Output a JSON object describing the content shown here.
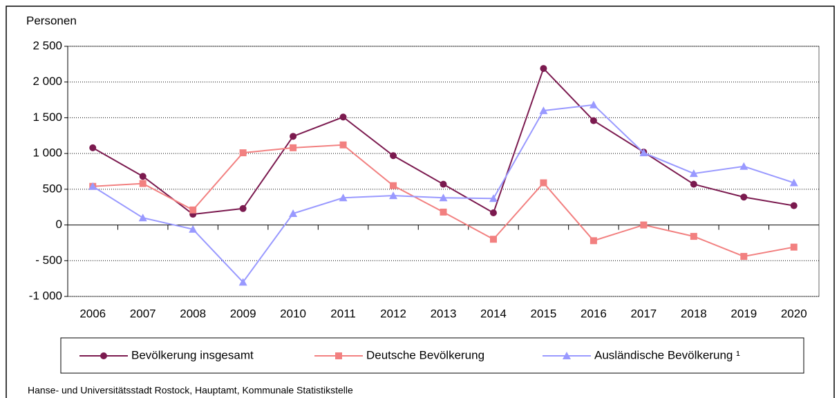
{
  "chart_data": {
    "type": "line",
    "y_label": "Personen",
    "source": "Hanse- und Universitätsstadt Rostock, Hauptamt, Kommunale Statistikstelle",
    "categories": [
      "2006",
      "2007",
      "2008",
      "2009",
      "2010",
      "2011",
      "2012",
      "2013",
      "2014",
      "2015",
      "2016",
      "2017",
      "2018",
      "2019",
      "2020"
    ],
    "series": [
      {
        "name": "Bevölkerung insgesamt",
        "color": "#7b1a4f",
        "marker": "circle",
        "values": [
          1080,
          680,
          150,
          230,
          1240,
          1510,
          970,
          570,
          170,
          2190,
          1460,
          1020,
          570,
          390,
          270
        ]
      },
      {
        "name": "Deutsche Bevölkerung",
        "color": "#f28080",
        "marker": "square",
        "values": [
          540,
          580,
          210,
          1010,
          1080,
          1120,
          550,
          180,
          -200,
          590,
          -220,
          0,
          -160,
          -440,
          -310
        ]
      },
      {
        "name": "Ausländische Bevölkerung ¹",
        "color": "#9999ff",
        "marker": "triangle",
        "values": [
          540,
          100,
          -60,
          -800,
          160,
          380,
          410,
          380,
          370,
          1600,
          1680,
          1010,
          720,
          820,
          590
        ]
      }
    ],
    "ylim": [
      -1000,
      2500
    ],
    "yticks": [
      {
        "value": -1000,
        "label": "-1 000"
      },
      {
        "value": -500,
        "label": "- 500"
      },
      0,
      500,
      {
        "value": 1000,
        "label": "1 000"
      },
      {
        "value": 1500,
        "label": "1 500"
      },
      {
        "value": 2000,
        "label": "2 000"
      },
      {
        "value": 2500,
        "label": "2 500"
      }
    ],
    "grid": true,
    "legend": "bottom"
  }
}
